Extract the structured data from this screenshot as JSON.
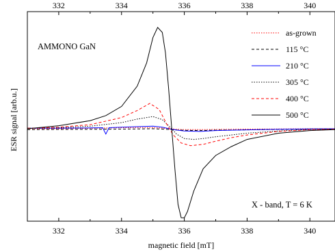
{
  "chart_data": {
    "type": "line",
    "title": "",
    "xlabel": "magnetic field [mT]",
    "ylabel": "ESR signal  [arb.u.]",
    "xlim": [
      331,
      340.8
    ],
    "ylim": [
      -1.0,
      1.0
    ],
    "x_ticks": [
      332,
      334,
      336,
      338,
      340
    ],
    "x_tick_labels": [
      "332",
      "334",
      "336",
      "338",
      "340"
    ],
    "annotations": {
      "sample": "AMMONO  GaN",
      "conditions": "X - band,   T = 6 K"
    },
    "legend_placement": "top-right",
    "grid": false,
    "series": [
      {
        "name": "as-grown",
        "color": "#ff0000",
        "dash": "dotted",
        "x": [
          331,
          332,
          333,
          334,
          334.5,
          335,
          335.3,
          335.6,
          335.75,
          336,
          336.5,
          337,
          338,
          339,
          340,
          340.8
        ],
        "y": [
          0.0,
          0.0,
          0.005,
          0.01,
          0.012,
          0.01,
          0.006,
          0.0,
          -0.005,
          -0.01,
          -0.01,
          -0.008,
          -0.004,
          -0.002,
          0.0,
          0.0
        ]
      },
      {
        "name": "115 °C",
        "color": "#000000",
        "dash": "dashed",
        "x": [
          331,
          332,
          333,
          334,
          334.5,
          335,
          335.3,
          335.6,
          335.75,
          336,
          336.5,
          337,
          338,
          339,
          340,
          340.8
        ],
        "y": [
          -0.01,
          -0.008,
          -0.006,
          -0.004,
          -0.002,
          0.0,
          -0.004,
          -0.01,
          -0.014,
          -0.018,
          -0.02,
          -0.016,
          -0.012,
          -0.008,
          -0.005,
          -0.004
        ]
      },
      {
        "name": "210 °C",
        "color": "#0000ff",
        "dash": "solid",
        "x": [
          331,
          332,
          333,
          333.4,
          333.5,
          333.6,
          334,
          334.5,
          335,
          335.3,
          335.6,
          335.75,
          336,
          336.5,
          337,
          338,
          339,
          340,
          340.8
        ],
        "y": [
          0.005,
          0.006,
          0.008,
          0.01,
          -0.06,
          0.01,
          0.015,
          0.02,
          0.025,
          0.015,
          -0.005,
          -0.015,
          -0.025,
          -0.03,
          -0.02,
          -0.012,
          -0.006,
          -0.002,
          0.0
        ]
      },
      {
        "name": "305 °C",
        "color": "#000000",
        "dash": "dotted",
        "x": [
          331,
          332,
          333,
          334,
          334.5,
          335,
          335.3,
          335.6,
          335.75,
          336,
          336.3,
          336.6,
          337,
          338,
          339,
          340,
          340.8
        ],
        "y": [
          0.005,
          0.01,
          0.025,
          0.06,
          0.095,
          0.12,
          0.09,
          0.0,
          -0.06,
          -0.11,
          -0.12,
          -0.11,
          -0.09,
          -0.05,
          -0.025,
          -0.008,
          -0.003
        ]
      },
      {
        "name": "400 °C",
        "color": "#ff0000",
        "dash": "dashed",
        "x": [
          331,
          332,
          333,
          334,
          334.5,
          334.9,
          335.2,
          335.45,
          335.65,
          335.9,
          336.2,
          336.6,
          337,
          337.5,
          338,
          339,
          340,
          340.8
        ],
        "y": [
          0.005,
          0.015,
          0.04,
          0.11,
          0.18,
          0.25,
          0.19,
          0.04,
          -0.07,
          -0.16,
          -0.19,
          -0.175,
          -0.14,
          -0.1,
          -0.07,
          -0.03,
          -0.01,
          -0.005
        ]
      },
      {
        "name": "500 °C",
        "color": "#000000",
        "dash": "solid",
        "x": [
          331,
          332,
          333,
          333.5,
          334,
          334.5,
          334.8,
          335.0,
          335.15,
          335.3,
          335.4,
          335.5,
          335.6,
          335.7,
          335.8,
          335.9,
          336.0,
          336.1,
          336.3,
          336.6,
          337,
          337.5,
          338,
          339,
          340,
          340.8
        ],
        "y": [
          0.0,
          0.03,
          0.08,
          0.13,
          0.22,
          0.42,
          0.65,
          0.9,
          1.0,
          0.95,
          0.75,
          0.4,
          0.0,
          -0.45,
          -0.85,
          -1.0,
          -1.0,
          -0.93,
          -0.7,
          -0.45,
          -0.3,
          -0.2,
          -0.12,
          -0.05,
          -0.02,
          -0.01
        ]
      }
    ]
  }
}
